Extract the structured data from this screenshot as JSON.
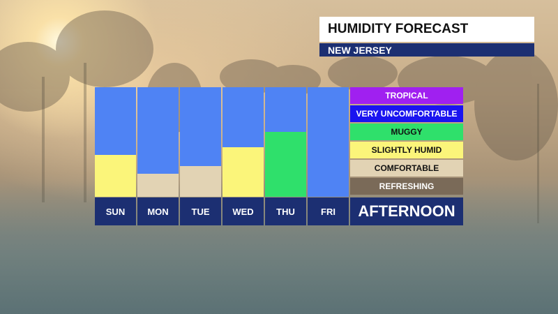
{
  "header": {
    "title": "HUMIDITY FORECAST",
    "subtitle": "NEW JERSEY"
  },
  "days": [
    {
      "label": "SUN",
      "level": "SLIGHTLY HUMID",
      "fill_fraction": 0.38
    },
    {
      "label": "MON",
      "level": "COMFORTABLE",
      "fill_fraction": 0.21
    },
    {
      "label": "TUE",
      "level": "COMFORTABLE",
      "fill_fraction": 0.28
    },
    {
      "label": "WED",
      "level": "SLIGHTLY HUMID",
      "fill_fraction": 0.45
    },
    {
      "label": "THU",
      "level": "MUGGY",
      "fill_fraction": 0.59
    },
    {
      "label": "FRI",
      "level": "",
      "fill_fraction": 0
    }
  ],
  "legend": [
    {
      "label": "TROPICAL",
      "color": "#a020f0",
      "text_color": "#ffffff"
    },
    {
      "label": "VERY UNCOMFORTABLE",
      "color": "#1a14f0",
      "text_color": "#ffffff"
    },
    {
      "label": "MUGGY",
      "color": "#2fe06b",
      "text_color": "#111111"
    },
    {
      "label": "SLIGHTLY HUMID",
      "color": "#fbf57a",
      "text_color": "#111111"
    },
    {
      "label": "COMFORTABLE",
      "color": "#e2d3b4",
      "text_color": "#111111"
    },
    {
      "label": "REFRESHING",
      "color": "#7a6a58",
      "text_color": "#ffffff"
    }
  ],
  "period_label": "AFTERNOON",
  "colors": {
    "column_background": "#4f83f4",
    "label_background": "#1c2f72"
  }
}
